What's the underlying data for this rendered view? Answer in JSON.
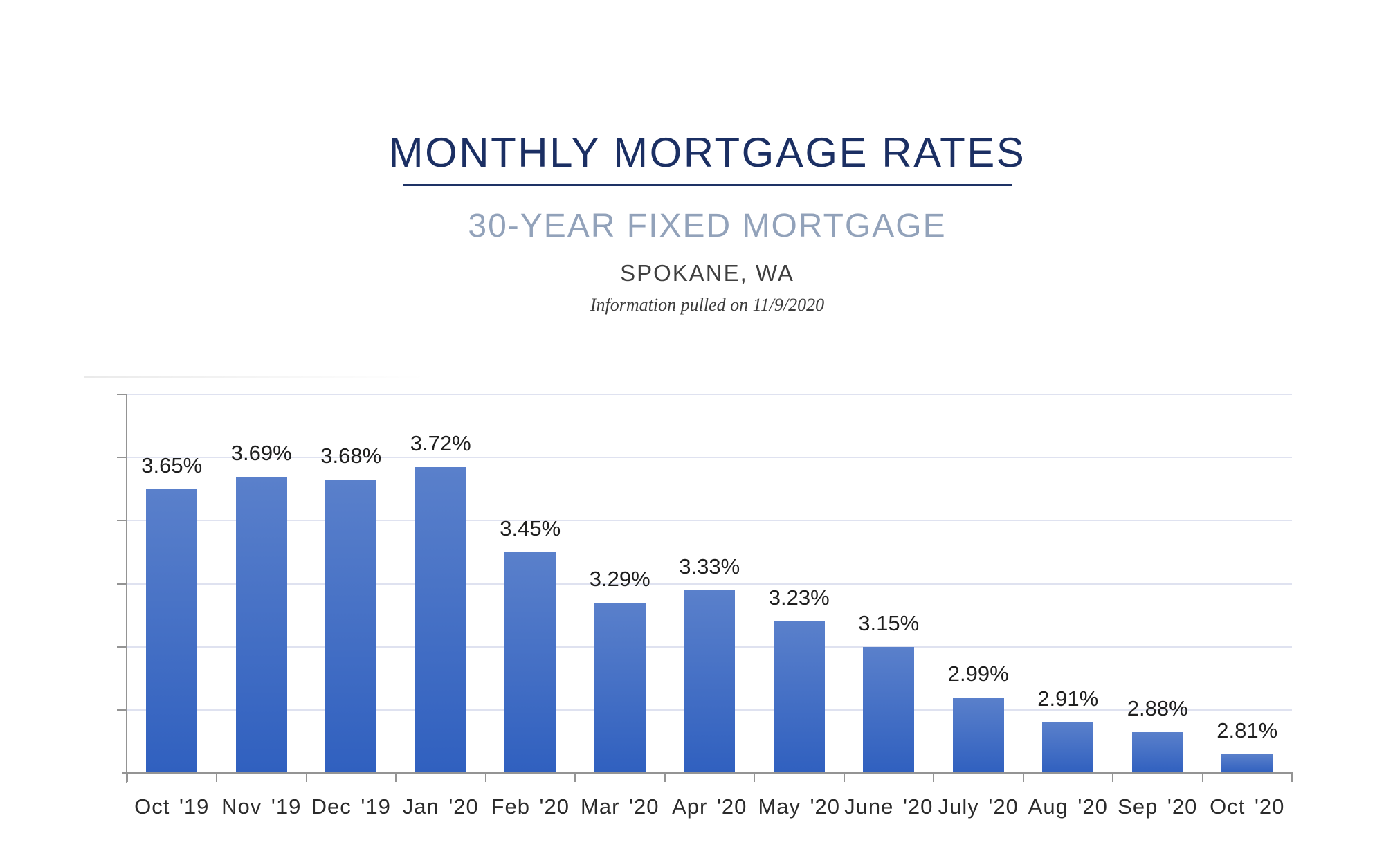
{
  "header": {
    "title": "MONTHLY MORTGAGE RATES",
    "subtitle": "30-YEAR FIXED MORTGAGE",
    "location": "SPOKANE, WA",
    "note": "Information pulled on 11/9/2020"
  },
  "chart_data": {
    "type": "bar",
    "title": "MONTHLY MORTGAGE RATES",
    "subtitle": "30-YEAR FIXED MORTGAGE — SPOKANE, WA",
    "categories": [
      "Oct '19",
      "Nov '19",
      "Dec '19",
      "Jan '20",
      "Feb '20",
      "Mar '20",
      "Apr '20",
      "May '20",
      "June '20",
      "July '20",
      "Aug '20",
      "Sep '20",
      "Oct '20"
    ],
    "values": [
      3.65,
      3.69,
      3.68,
      3.72,
      3.45,
      3.29,
      3.33,
      3.23,
      3.15,
      2.99,
      2.91,
      2.88,
      2.81
    ],
    "value_labels": [
      "3.65%",
      "3.69%",
      "3.68%",
      "3.72%",
      "3.45%",
      "3.29%",
      "3.33%",
      "3.23%",
      "3.15%",
      "2.99%",
      "2.91%",
      "2.88%",
      "2.81%"
    ],
    "xlabel": "",
    "ylabel": "",
    "ylim": [
      2.75,
      3.95
    ],
    "grid_step": 0.2,
    "grid": true,
    "legend": false,
    "y_tick_labels_visible": false,
    "data_labels_visible": true
  },
  "colors": {
    "title": "#1b2f63",
    "underline": "#1e3366",
    "subtitle": "#92a2ba",
    "location": "#3f3f3f",
    "note": "#3c3c3c",
    "bar_gradient_top": "#5a80cb",
    "bar_gradient_bottom": "#3060bf",
    "gridline": "#dfe2f0",
    "axis": "#949494",
    "data_label": "#1f1f1f",
    "category_label": "#2b2b2b"
  }
}
